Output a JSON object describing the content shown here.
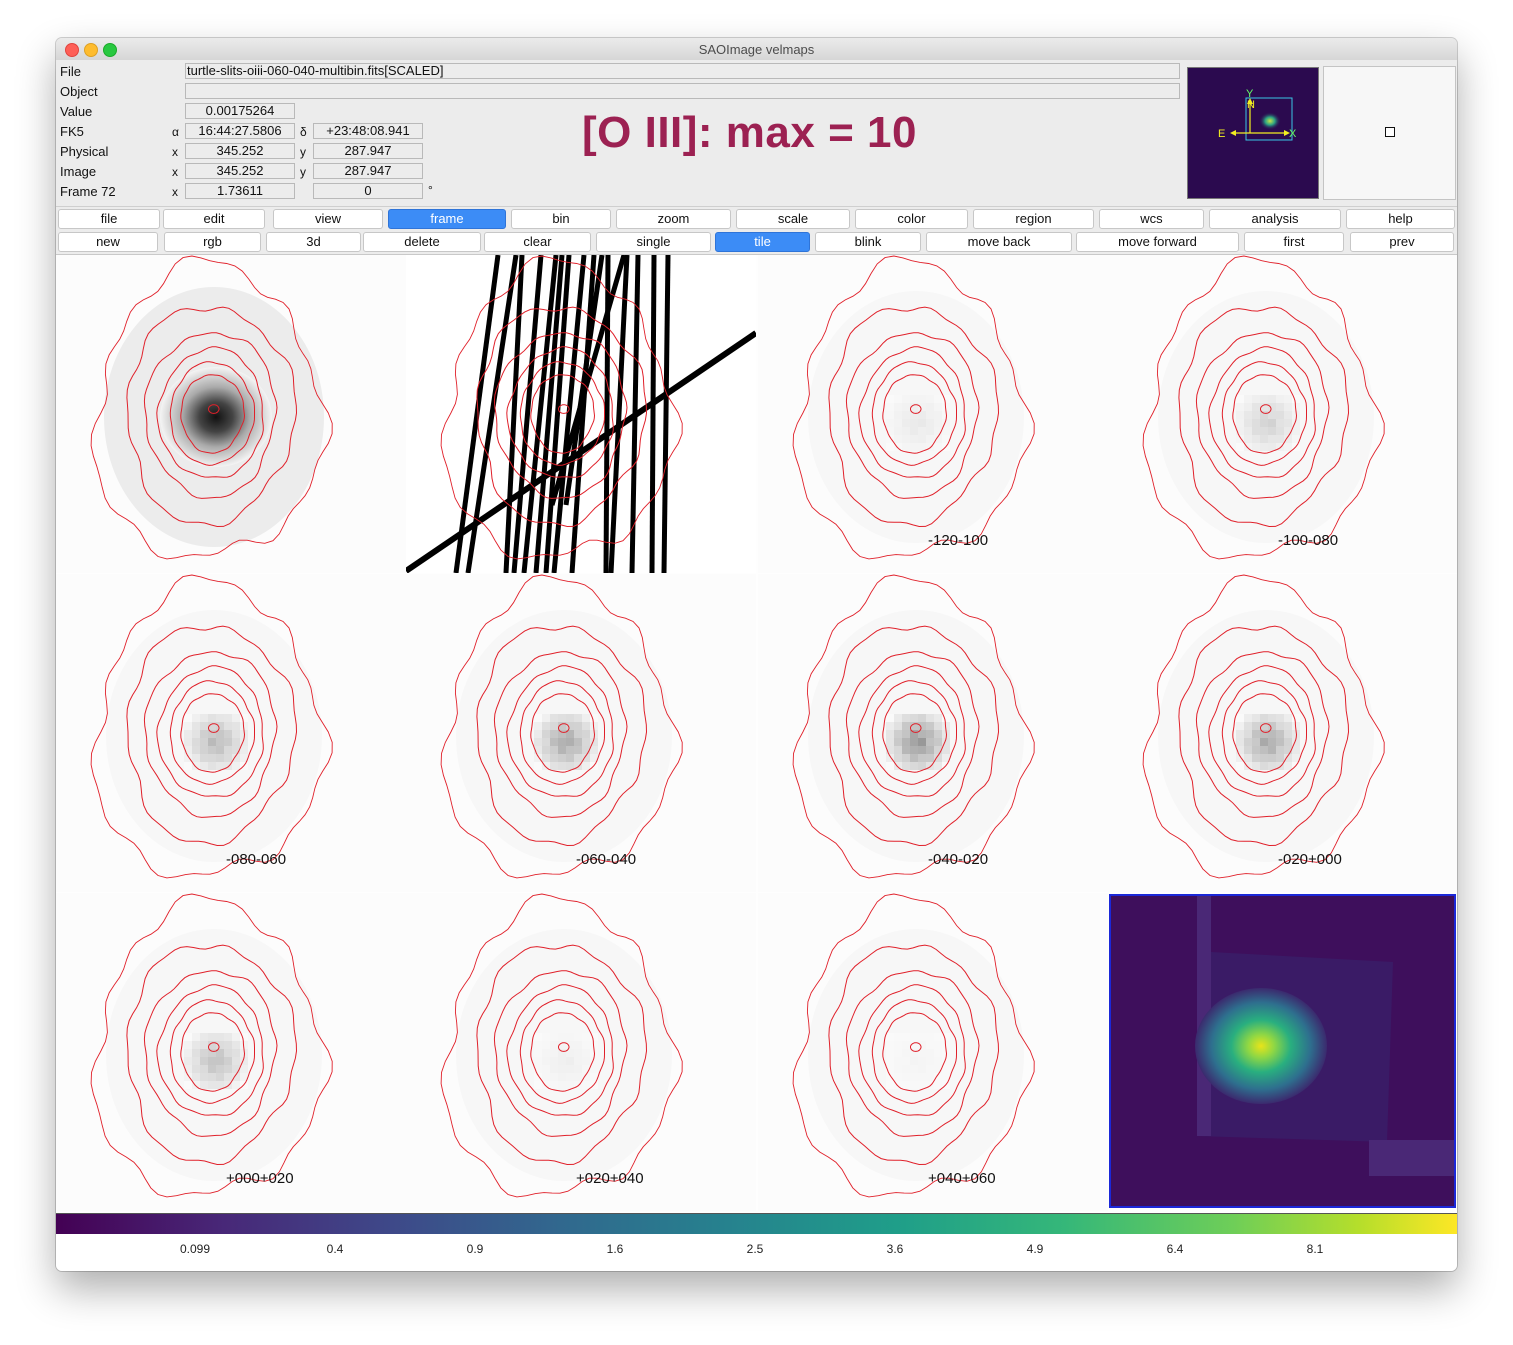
{
  "window": {
    "title": "SAOImage velmaps"
  },
  "info": {
    "file_label": "File",
    "file_value": "turtle-slits-oiii-060-040-multibin.fits[SCALED]",
    "object_label": "Object",
    "object_value": "",
    "value_label": "Value",
    "value_value": "0.00175264",
    "fk5_label": "FK5",
    "fk5_alpha_symbol": "α",
    "fk5_alpha": "16:44:27.5806",
    "fk5_delta_symbol": "δ",
    "fk5_delta": "+23:48:08.941",
    "physical_label": "Physical",
    "physical_x": "345.252",
    "physical_y": "287.947",
    "image_label": "Image",
    "image_x": "345.252",
    "image_y": "287.947",
    "frame_label": "Frame 72",
    "frame_x": "1.73611",
    "frame_angle": "0",
    "degree_symbol": "°",
    "x_symbol": "x",
    "y_symbol": "y",
    "headline": "[O III]: max = 10"
  },
  "panner": {
    "y_label": "Y",
    "n_label": "N",
    "e_label": "E",
    "x_label": "X"
  },
  "menu_buttons": [
    "file",
    "edit",
    "view",
    "frame",
    "bin",
    "zoom",
    "scale",
    "color",
    "region",
    "wcs",
    "analysis",
    "help"
  ],
  "menu_active": "frame",
  "frame_buttons": [
    "new",
    "rgb",
    "3d",
    "delete",
    "clear",
    "single",
    "tile",
    "blink",
    "move back",
    "move forward",
    "first",
    "prev"
  ],
  "frame_active": "tile",
  "tiles": [
    {
      "label": "",
      "kind": "intensity"
    },
    {
      "label": "",
      "kind": "slits"
    },
    {
      "label": "-120-100",
      "kind": "velmap"
    },
    {
      "label": "-100-080",
      "kind": "velmap"
    },
    {
      "label": "-080-060",
      "kind": "velmap"
    },
    {
      "label": "-060-040",
      "kind": "velmap"
    },
    {
      "label": "-040-020",
      "kind": "velmap"
    },
    {
      "label": "-020+000",
      "kind": "velmap"
    },
    {
      "label": "+000+020",
      "kind": "velmap"
    },
    {
      "label": "+020+040",
      "kind": "velmap"
    },
    {
      "label": "+040+060",
      "kind": "velmap"
    },
    {
      "label": "",
      "kind": "viridis"
    }
  ],
  "colorbar": {
    "colormap": "viridis",
    "ticks": [
      "0.099",
      "0.4",
      "0.9",
      "1.6",
      "2.5",
      "3.6",
      "4.9",
      "6.4",
      "8.1"
    ]
  },
  "colors": {
    "accent": "#3c8cf6",
    "headline": "#9c2152",
    "contour": "#e0202a",
    "current_frame_border": "#1b28d8"
  }
}
